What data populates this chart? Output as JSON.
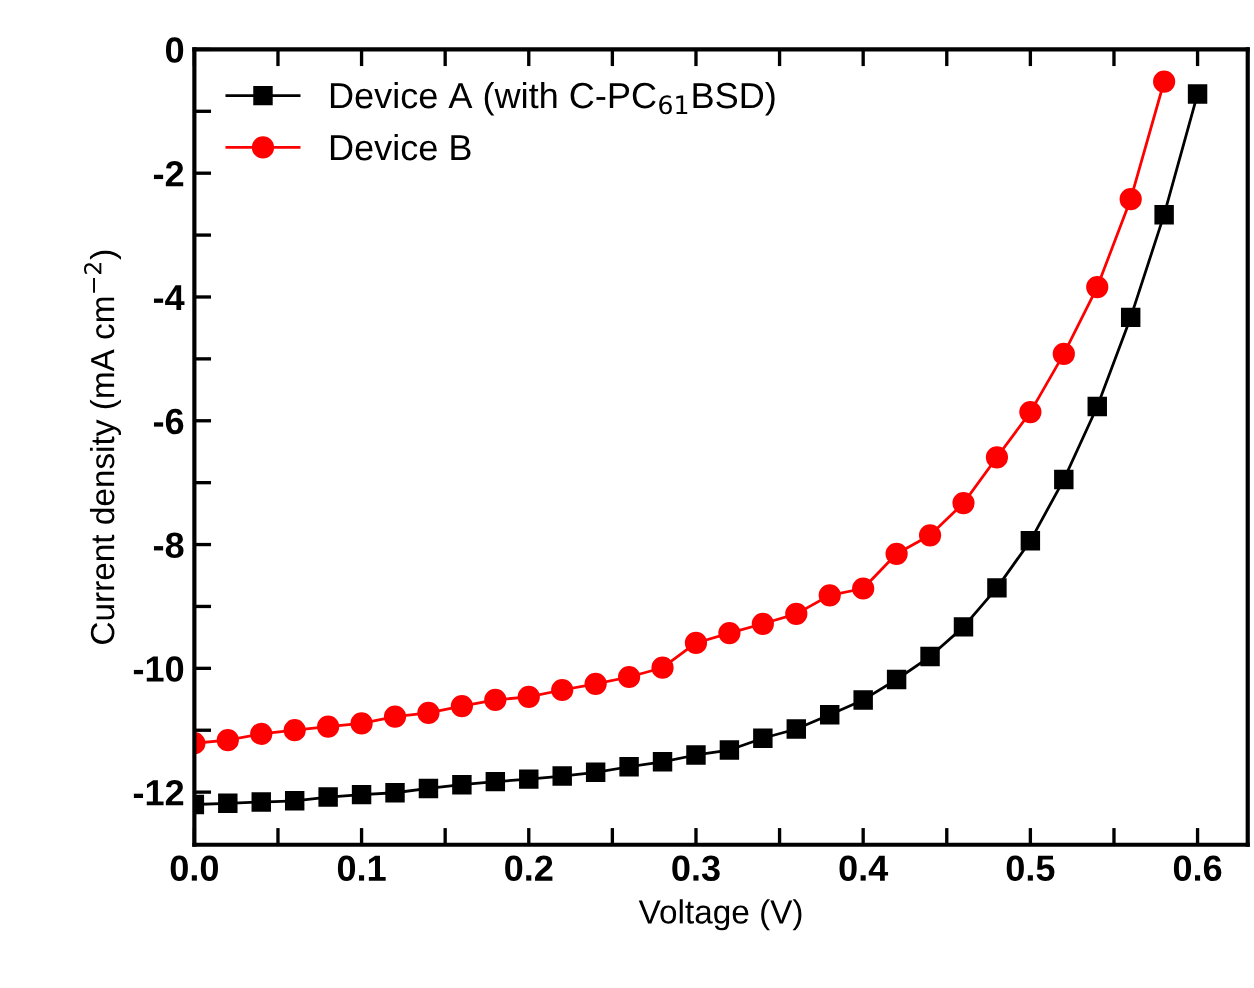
{
  "chart_data": {
    "type": "line",
    "xlabel": "Voltage (V)",
    "ylabel": "Current density (mA cm$^{−2}$)",
    "x": [
      0,
      0.02,
      0.04,
      0.06,
      0.08,
      0.1,
      0.12,
      0.14,
      0.16,
      0.18,
      0.2,
      0.22,
      0.24,
      0.26,
      0.28,
      0.3,
      0.32,
      0.34,
      0.36,
      0.38,
      0.4,
      0.42,
      0.44,
      0.46,
      0.48,
      0.5,
      0.52,
      0.54,
      0.56,
      0.58,
      0.6
    ],
    "series": [
      {
        "name": "Device A (with C-PC$_{61}$BSD)",
        "color": "#000000",
        "marker": "square",
        "values": [
          -12.2,
          -12.18,
          -12.16,
          -12.14,
          -12.08,
          -12.04,
          -12.01,
          -11.94,
          -11.88,
          -11.83,
          -11.79,
          -11.74,
          -11.68,
          -11.59,
          -11.51,
          -11.4,
          -11.32,
          -11.13,
          -10.98,
          -10.75,
          -10.51,
          -10.18,
          -9.81,
          -9.33,
          -8.7,
          -7.94,
          -6.95,
          -5.77,
          -4.33,
          -2.67,
          -0.72
        ]
      },
      {
        "name": "Device B",
        "color": "#ff0000",
        "marker": "circle",
        "values": [
          -11.21,
          -11.16,
          -11.06,
          -11.0,
          -10.94,
          -10.89,
          -10.78,
          -10.72,
          -10.61,
          -10.51,
          -10.46,
          -10.35,
          -10.25,
          -10.14,
          -9.99,
          -9.59,
          -9.43,
          -9.28,
          -9.12,
          -8.82,
          -8.71,
          -8.15,
          -7.85,
          -7.33,
          -6.59,
          -5.86,
          -4.92,
          -3.84,
          -2.42,
          -0.52,
          null
        ]
      }
    ],
    "xlim": [
      0,
      0.63
    ],
    "ylim": [
      -12.85,
      0
    ],
    "xticks": [
      {
        "value": 0,
        "label": "0.0"
      },
      {
        "value": 0.05,
        "label": null
      },
      {
        "value": 0.1,
        "label": "0.1"
      },
      {
        "value": 0.15,
        "label": null
      },
      {
        "value": 0.2,
        "label": "0.2"
      },
      {
        "value": 0.25,
        "label": null
      },
      {
        "value": 0.3,
        "label": "0.3"
      },
      {
        "value": 0.35,
        "label": null
      },
      {
        "value": 0.4,
        "label": "0.4"
      },
      {
        "value": 0.45,
        "label": null
      },
      {
        "value": 0.5,
        "label": "0.5"
      },
      {
        "value": 0.55,
        "label": null
      },
      {
        "value": 0.6,
        "label": "0.6"
      }
    ],
    "yticks": [
      {
        "value": -12,
        "label": "-12"
      },
      {
        "value": -11,
        "label": null
      },
      {
        "value": -10,
        "label": "-10"
      },
      {
        "value": -9,
        "label": null
      },
      {
        "value": -8,
        "label": "-8"
      },
      {
        "value": -7,
        "label": null
      },
      {
        "value": -6,
        "label": "-6"
      },
      {
        "value": -5,
        "label": null
      },
      {
        "value": -4,
        "label": "-4"
      },
      {
        "value": -3,
        "label": null
      },
      {
        "value": -2,
        "label": "-2"
      },
      {
        "value": -1,
        "label": null
      },
      {
        "value": 0,
        "label": "0"
      }
    ],
    "grid": false,
    "legend": "top left",
    "line_style": "solid"
  }
}
